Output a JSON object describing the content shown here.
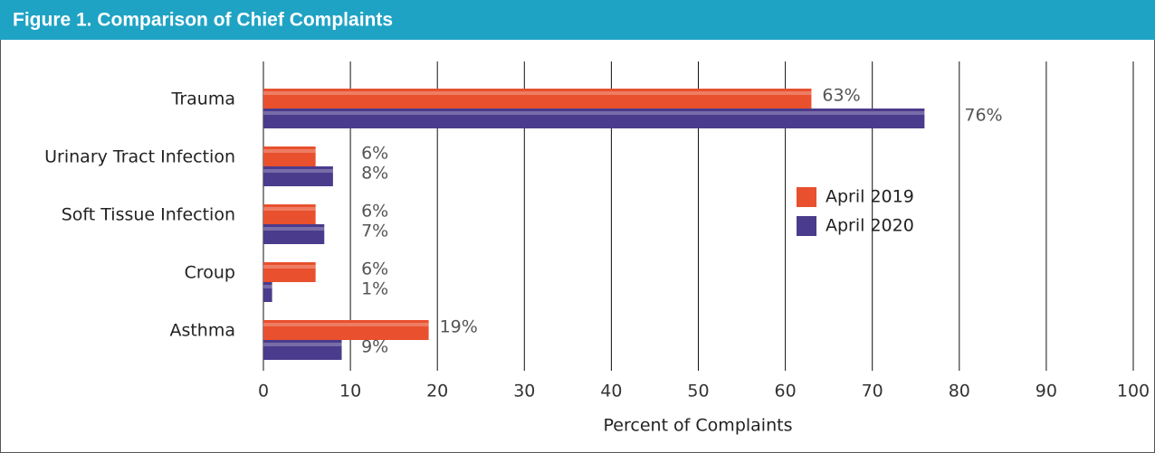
{
  "chart_data": {
    "type": "bar",
    "orientation": "horizontal",
    "title": "Figure 1. Comparison of Chief Complaints",
    "x_label": "Percent of Complaints",
    "categories": [
      "Trauma",
      "Urinary Tract Infection",
      "Soft Tissue Infection",
      "Croup",
      "Asthma"
    ],
    "series": [
      {
        "name": "April 2019",
        "color": "#e8502e",
        "values": [
          63,
          6,
          6,
          6,
          19
        ],
        "value_labels": [
          "63%",
          "6%",
          "6%",
          "6%",
          "19%"
        ]
      },
      {
        "name": "April 2020",
        "color": "#4b3b8c",
        "values": [
          76,
          8,
          7,
          1,
          9
        ],
        "value_labels": [
          "76%",
          "8%",
          "7%",
          "1%",
          "9%"
        ]
      }
    ],
    "xlim": [
      0,
      100
    ],
    "xticks": [
      0,
      10,
      20,
      30,
      40,
      50,
      60,
      70,
      80,
      90,
      100
    ],
    "grid": true,
    "legend": "right"
  }
}
